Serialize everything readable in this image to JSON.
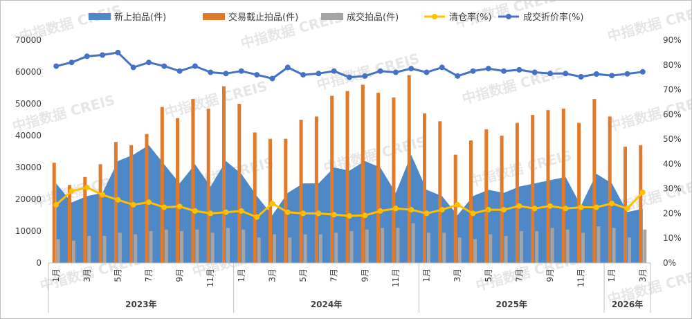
{
  "chart_data": {
    "type": "bar",
    "categories": [
      "1月",
      "2月",
      "3月",
      "4月",
      "5月",
      "6月",
      "7月",
      "8月",
      "9月",
      "10月",
      "11月",
      "12月",
      "1月",
      "2月",
      "3月",
      "4月",
      "5月",
      "6月",
      "7月",
      "8月",
      "9月",
      "10月",
      "11月",
      "12月",
      "1月",
      "2月",
      "3月",
      "4月",
      "5月",
      "6月",
      "7月",
      "8月",
      "9月",
      "10月",
      "11月",
      "12月",
      "1月",
      "2月",
      "3月"
    ],
    "x_tick_labels": [
      "1月",
      "",
      "3月",
      "",
      "5月",
      "",
      "7月",
      "",
      "9月",
      "",
      "11月",
      "",
      "1月",
      "",
      "3月",
      "",
      "5月",
      "",
      "7月",
      "",
      "9月",
      "",
      "11月",
      "",
      "1月",
      "",
      "3月",
      "",
      "5月",
      "",
      "7月",
      "",
      "9月",
      "",
      "11月",
      "",
      "1月",
      "",
      "3月"
    ],
    "year_groups": [
      {
        "label": "2023年",
        "start": 0,
        "end": 11
      },
      {
        "label": "2024年",
        "start": 12,
        "end": 23
      },
      {
        "label": "2025年",
        "start": 24,
        "end": 35
      },
      {
        "label": "2026年",
        "start": 36,
        "end": 38
      }
    ],
    "y_left": {
      "min": 0,
      "max": 70000,
      "step": 10000,
      "tick_labels": [
        "0",
        "10000",
        "20000",
        "30000",
        "40000",
        "50000",
        "60000",
        "70000"
      ]
    },
    "y_right": {
      "min": 0,
      "max": 90,
      "step": 10,
      "tick_labels": [
        "0%",
        "10%",
        "20%",
        "30%",
        "40%",
        "50%",
        "60%",
        "70%",
        "80%",
        "90%"
      ]
    },
    "series": [
      {
        "name": "新上拍品(件)",
        "kind": "area",
        "axis": "left",
        "color": "#4f88c6",
        "values": [
          25000,
          19000,
          21000,
          22000,
          32000,
          34000,
          37000,
          31000,
          25000,
          31000,
          24000,
          32000,
          28000,
          21000,
          15000,
          22000,
          25000,
          25000,
          30000,
          29000,
          32000,
          30000,
          22000,
          34000,
          23000,
          21000,
          15000,
          21000,
          23000,
          22000,
          24000,
          25000,
          26000,
          27000,
          18000,
          28000,
          25000,
          16000,
          17000
        ]
      },
      {
        "name": "交易截止拍品(件)",
        "kind": "bar",
        "axis": "left",
        "color": "#e07b2b",
        "values": [
          31500,
          24500,
          27000,
          31000,
          38000,
          37000,
          40500,
          49000,
          45500,
          51500,
          48500,
          55500,
          50000,
          41000,
          39000,
          39000,
          45000,
          46000,
          52500,
          54000,
          56000,
          53500,
          52000,
          59000,
          47000,
          44500,
          34000,
          38500,
          42000,
          40000,
          44000,
          46500,
          48000,
          48500,
          44000,
          51500,
          46000,
          36500,
          37000
        ]
      },
      {
        "name": "成交拍品(件)",
        "kind": "bar",
        "axis": "left",
        "color": "#a5a5a5",
        "values": [
          7500,
          7000,
          8500,
          8500,
          9500,
          9000,
          10000,
          10500,
          10000,
          10500,
          9500,
          11000,
          10500,
          8000,
          9000,
          8000,
          9000,
          9000,
          9500,
          10000,
          10500,
          11000,
          11000,
          12500,
          9500,
          9500,
          8000,
          7500,
          9000,
          8500,
          10000,
          10000,
          11000,
          10500,
          9500,
          11500,
          11000,
          8000,
          10500
        ]
      },
      {
        "name": "清仓率(%)",
        "kind": "line",
        "axis": "right",
        "color": "#ffc000",
        "values": [
          23.5,
          29,
          30.5,
          27.5,
          25.5,
          23.5,
          24.5,
          22.5,
          22.8,
          21,
          20,
          20.5,
          21,
          18.5,
          24,
          20.5,
          20,
          20,
          19.5,
          19,
          19.2,
          21,
          22,
          21.5,
          20,
          21.5,
          23.5,
          20,
          21.5,
          21.5,
          23,
          22,
          23,
          22,
          22.5,
          22.5,
          24,
          22,
          28.5
        ]
      },
      {
        "name": "成交折价率(%)",
        "kind": "line",
        "axis": "right",
        "color": "#4472c4",
        "values": [
          79.5,
          81,
          83.5,
          84,
          85,
          79,
          81,
          79.5,
          77.5,
          79.5,
          77,
          76.5,
          77.5,
          76,
          74.5,
          79,
          76,
          76.5,
          77.5,
          75,
          75.5,
          77.5,
          77,
          78.5,
          77,
          79,
          75.5,
          77.5,
          78.5,
          77.5,
          78,
          77,
          76.5,
          76.5,
          75.2,
          76.3,
          75.7,
          76.4,
          77.2
        ]
      }
    ],
    "legend_position": "top",
    "grid": false,
    "watermark": "中指数据 CREIS"
  }
}
